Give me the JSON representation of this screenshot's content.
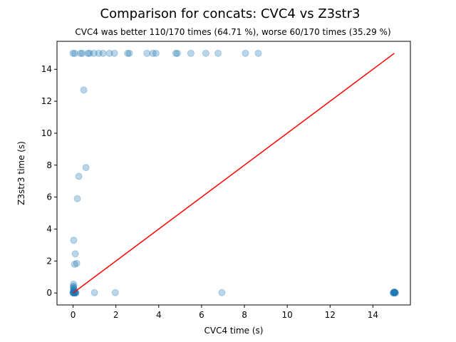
{
  "chart_data": {
    "type": "scatter",
    "title": "Comparison for concats: CVC4 vs Z3str3",
    "subtitle": "CVC4 was better 110/170 times (64.71 %), worse 60/170 times (35.29 %)",
    "xlabel": "CVC4 time (s)",
    "ylabel": "Z3str3 time (s)",
    "xlim": [
      -0.75,
      15.75
    ],
    "ylim": [
      -0.75,
      15.75
    ],
    "xticks": [
      0,
      2,
      4,
      6,
      8,
      10,
      12,
      14
    ],
    "yticks": [
      0,
      2,
      4,
      6,
      8,
      10,
      12,
      14
    ],
    "grid": false,
    "point_color": "#1f77b4",
    "line_color": "#ff0000",
    "reference_line": {
      "x": [
        0,
        15
      ],
      "y": [
        0,
        15
      ]
    },
    "series": [
      {
        "points": [
          [
            0.0,
            15.0
          ],
          [
            0.08,
            15.0
          ],
          [
            0.35,
            15.0
          ],
          [
            0.43,
            15.0
          ],
          [
            0.7,
            15.0
          ],
          [
            0.77,
            15.0
          ],
          [
            0.97,
            15.0
          ],
          [
            1.2,
            15.0
          ],
          [
            1.4,
            15.0
          ],
          [
            1.7,
            15.0
          ],
          [
            1.93,
            15.0
          ],
          [
            2.55,
            15.0
          ],
          [
            2.63,
            15.0
          ],
          [
            3.45,
            15.0
          ],
          [
            3.73,
            15.0
          ],
          [
            3.87,
            15.0
          ],
          [
            4.8,
            15.0
          ],
          [
            4.87,
            15.0
          ],
          [
            5.5,
            15.0
          ],
          [
            6.2,
            15.0
          ],
          [
            6.77,
            15.0
          ],
          [
            8.05,
            15.0
          ],
          [
            8.65,
            15.0
          ],
          [
            0.5,
            12.7
          ],
          [
            0.6,
            7.85
          ],
          [
            0.27,
            7.3
          ],
          [
            0.2,
            5.9
          ],
          [
            0.03,
            3.3
          ],
          [
            0.1,
            2.45
          ],
          [
            0.07,
            1.8
          ],
          [
            0.17,
            1.85
          ],
          [
            0.02,
            0.55
          ],
          [
            0.02,
            0.42
          ],
          [
            0.02,
            0.35
          ],
          [
            0.03,
            0.28
          ],
          [
            0.03,
            0.22
          ],
          [
            0.03,
            0.16
          ],
          [
            0.02,
            0.11
          ],
          [
            0.05,
            0.08
          ],
          [
            0.04,
            0.05
          ],
          [
            0.06,
            0.03
          ],
          [
            0.0,
            0.02
          ],
          [
            0.02,
            0.01
          ],
          [
            0.08,
            0.02
          ],
          [
            0.1,
            0.01
          ],
          [
            0.12,
            0.03
          ],
          [
            0.04,
            0.0
          ],
          [
            0.0,
            0.0
          ],
          [
            0.07,
            0.0
          ],
          [
            0.13,
            0.0
          ],
          [
            1.0,
            0.02
          ],
          [
            1.97,
            0.02
          ],
          [
            6.95,
            0.02
          ],
          [
            14.95,
            0.0
          ],
          [
            15.0,
            0.02
          ],
          [
            15.05,
            0.0
          ],
          [
            14.98,
            0.05
          ],
          [
            15.02,
            0.04
          ],
          [
            15.0,
            0.0
          ],
          [
            14.96,
            0.01
          ],
          [
            15.04,
            0.02
          ],
          [
            15.01,
            0.06
          ],
          [
            14.99,
            0.03
          ]
        ]
      }
    ]
  }
}
